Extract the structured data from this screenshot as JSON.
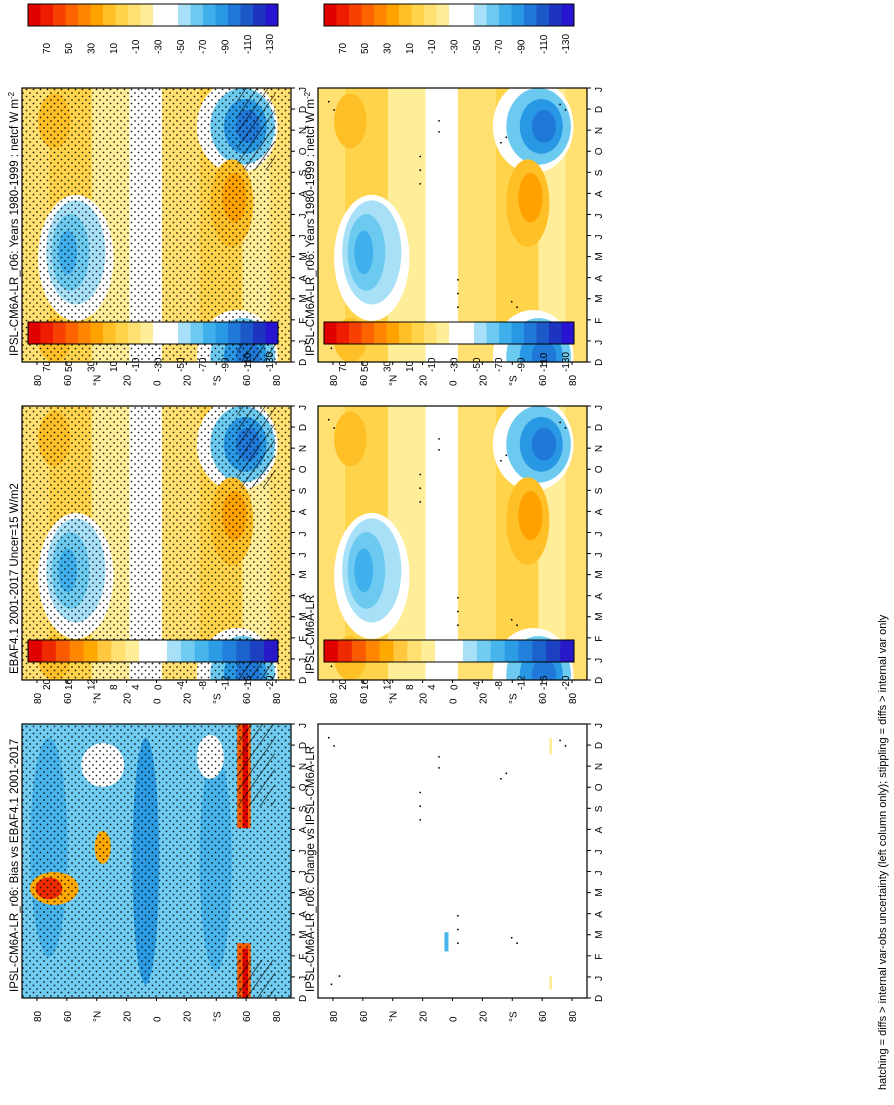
{
  "figure": {
    "footnote": "hatching = diffs > internal var-obs uncertainty (left column only); stippling = diffs > internal var only"
  },
  "colors": {
    "main_scale": [
      "#e00000",
      "#f01c00",
      "#f84000",
      "#fc6400",
      "#ff8400",
      "#ffa200",
      "#ffbf26",
      "#ffd44a",
      "#ffe070",
      "#ffee99",
      "#ffffff",
      "#ffffff",
      "#a8e0f8",
      "#6ccaf0",
      "#40b0ec",
      "#2898e4",
      "#2078d8",
      "#1c58c8",
      "#1c34c0",
      "#2814d0"
    ],
    "diff_scale": [
      "#e00000",
      "#f02a00",
      "#fa5a00",
      "#ff8600",
      "#ffa800",
      "#ffc840",
      "#ffe070",
      "#ffee99",
      "#ffffff",
      "#ffffff",
      "#a8e0f8",
      "#70ccf0",
      "#48b4ec",
      "#2c9ce4",
      "#2080dc",
      "#1c62cc",
      "#1c40c0",
      "#2818c8"
    ]
  },
  "chart_data": [
    {
      "type": "heatmap",
      "panel": "top-left",
      "title": "IPSL-CM6A-LR_r06: Years 1980-1999 : netcf W m",
      "title_sup": "-2",
      "x_tick_labels": [
        "D",
        "J",
        "F",
        "M",
        "A",
        "M",
        "J",
        "J",
        "A",
        "S",
        "O",
        "N",
        "D",
        "J"
      ],
      "y_tick_labels": [
        "80",
        "60",
        "°N",
        "20",
        "0",
        "20",
        "°S",
        "60",
        "80"
      ],
      "colorbar_labels": [
        "70",
        "50",
        "30",
        "10",
        "-10",
        "-30",
        "-50",
        "-70",
        "-90",
        "-110",
        "-130"
      ],
      "stippling": "yes",
      "hatching": "yes"
    },
    {
      "type": "heatmap",
      "panel": "top-right",
      "title": "IPSL-CM6A-LR_r06: Years 1980-1999 : netcf W m",
      "title_sup": "-2",
      "x_tick_labels": [
        "D",
        "J",
        "F",
        "M",
        "A",
        "M",
        "J",
        "J",
        "A",
        "S",
        "O",
        "N",
        "D",
        "J"
      ],
      "y_tick_labels": [
        "80",
        "60",
        "°N",
        "20",
        "0",
        "20",
        "°S",
        "60",
        "80"
      ],
      "colorbar_labels": [
        "70",
        "50",
        "30",
        "10",
        "-10",
        "-30",
        "-50",
        "-70",
        "-90",
        "-110",
        "-130"
      ],
      "stippling": "sparse",
      "hatching": "no"
    },
    {
      "type": "heatmap",
      "panel": "middle-left",
      "title": "EBAF4.1 2001-2017 Uncer=15 W/m2",
      "x_tick_labels": [
        "D",
        "J",
        "F",
        "M",
        "A",
        "M",
        "J",
        "J",
        "A",
        "S",
        "O",
        "N",
        "D",
        "J"
      ],
      "y_tick_labels": [
        "80",
        "60",
        "°N",
        "20",
        "0",
        "20",
        "°S",
        "60",
        "80"
      ],
      "colorbar_labels": [
        "70",
        "50",
        "30",
        "10",
        "-10",
        "-30",
        "-50",
        "-70",
        "-90",
        "-110",
        "-130"
      ],
      "stippling": "yes",
      "hatching": "yes"
    },
    {
      "type": "heatmap",
      "panel": "middle-right",
      "title": "IPSL-CM6A-LR",
      "x_tick_labels": [
        "D",
        "J",
        "F",
        "M",
        "A",
        "M",
        "J",
        "J",
        "A",
        "S",
        "O",
        "N",
        "D",
        "J"
      ],
      "y_tick_labels": [
        "80",
        "60",
        "°N",
        "20",
        "0",
        "20",
        "°S",
        "60",
        "80"
      ],
      "colorbar_labels": [
        "70",
        "50",
        "30",
        "10",
        "-10",
        "-30",
        "-50",
        "-70",
        "-90",
        "-110",
        "-130"
      ],
      "stippling": "sparse",
      "hatching": "no"
    },
    {
      "type": "heatmap",
      "panel": "bottom-left",
      "title": "IPSL-CM6A-LR_r06: Bias vs EBAF4.1 2001-2017",
      "x_tick_labels": [
        "D",
        "J",
        "F",
        "M",
        "A",
        "M",
        "J",
        "J",
        "A",
        "S",
        "O",
        "N",
        "D",
        "J"
      ],
      "y_tick_labels": [
        "80",
        "60",
        "°N",
        "20",
        "0",
        "20",
        "°S",
        "60",
        "80"
      ],
      "colorbar_labels": [
        "20",
        "16",
        "12",
        "8",
        "4",
        "0",
        "-4",
        "-8",
        "-12",
        "-16",
        "-20"
      ],
      "stippling": "yes",
      "hatching": "yes"
    },
    {
      "type": "heatmap",
      "panel": "bottom-right",
      "title": "IPSL-CM6A-LR_r06: Change vs IPSL-CM6A-LR",
      "x_tick_labels": [
        "D",
        "J",
        "F",
        "M",
        "A",
        "M",
        "J",
        "J",
        "A",
        "S",
        "O",
        "N",
        "D",
        "J"
      ],
      "y_tick_labels": [
        "80",
        "60",
        "°N",
        "20",
        "0",
        "20",
        "°S",
        "60",
        "80"
      ],
      "colorbar_labels": [
        "20",
        "16",
        "12",
        "8",
        "4",
        "0",
        "-4",
        "-8",
        "-12",
        "-16",
        "-20"
      ],
      "stippling": "sparse",
      "hatching": "no"
    }
  ]
}
